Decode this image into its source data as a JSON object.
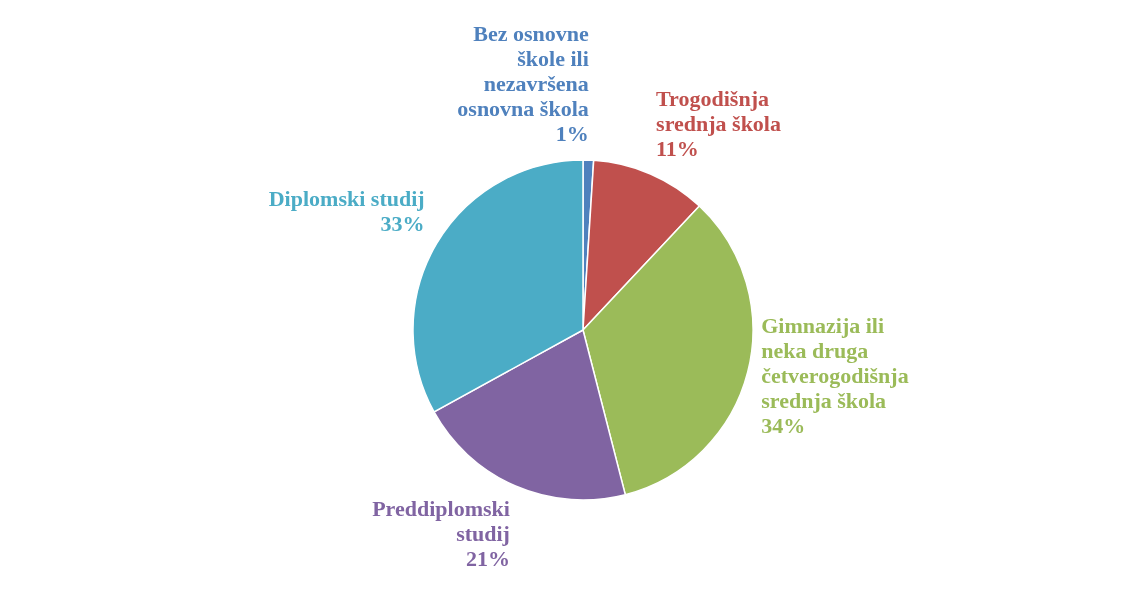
{
  "chart_data": {
    "type": "pie",
    "categories": [
      "Bez osnovne škole ili nezavršena osnovna škola",
      "Trogodišnja srednja škola",
      "Gimnazija ili neka druga četverogodišnja srednja škola",
      "Preddiplomski studij",
      "Diplomski studij"
    ],
    "values": [
      1,
      11,
      34,
      21,
      33
    ],
    "value_labels": [
      "1%",
      "11%",
      "34%",
      "21%",
      "33%"
    ],
    "colors": [
      "#4f81bd",
      "#c0504d",
      "#9bbb59",
      "#8064a2",
      "#4bacc6"
    ]
  }
}
